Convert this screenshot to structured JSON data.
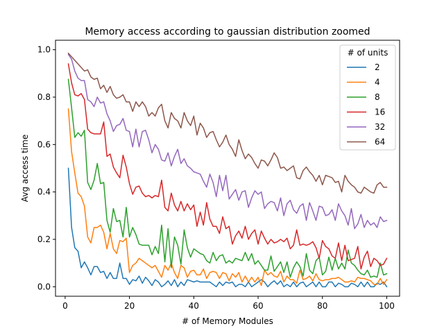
{
  "chart_data": {
    "type": "line",
    "title": "Memory access according to gaussian distribution zoomed",
    "xlabel": "# of Memory Modules",
    "ylabel": "Avg access time",
    "xlim": [
      -3,
      104
    ],
    "ylim": [
      -0.04,
      1.04
    ],
    "xticks": [
      0,
      20,
      40,
      60,
      80,
      100
    ],
    "yticks": [
      0.0,
      0.2,
      0.4,
      0.6,
      0.8,
      1.0
    ],
    "grid": false,
    "legend": {
      "title": "# of units",
      "placement": "top-right"
    },
    "x": [
      1,
      2,
      3,
      4,
      5,
      6,
      7,
      8,
      9,
      10,
      11,
      12,
      13,
      14,
      15,
      16,
      17,
      18,
      19,
      20,
      21,
      22,
      23,
      24,
      25,
      26,
      27,
      28,
      29,
      30,
      31,
      32,
      33,
      34,
      35,
      36,
      37,
      38,
      39,
      40,
      41,
      42,
      43,
      44,
      45,
      46,
      47,
      48,
      49,
      50,
      51,
      52,
      53,
      54,
      55,
      56,
      57,
      58,
      59,
      60,
      61,
      62,
      63,
      64,
      65,
      66,
      67,
      68,
      69,
      70,
      71,
      72,
      73,
      74,
      75,
      76,
      77,
      78,
      79,
      80,
      81,
      82,
      83,
      84,
      85,
      86,
      87,
      88,
      89,
      90,
      91,
      92,
      93,
      94,
      95,
      96,
      97,
      98,
      99,
      100
    ],
    "series": [
      {
        "name": "2",
        "color": "#1f77b4",
        "values": [
          0.5,
          0.25,
          0.165,
          0.15,
          0.08,
          0.105,
          0.08,
          0.05,
          0.085,
          0.085,
          0.06,
          0.065,
          0.035,
          0.06,
          0.035,
          0.035,
          0.1,
          0.035,
          0.035,
          0.01,
          0.03,
          0.025,
          0.045,
          0.015,
          0.04,
          0.025,
          0.005,
          0.03,
          0.02,
          0.0,
          0.01,
          0.025,
          0.005,
          0.03,
          0.0,
          0.02,
          0.005,
          0.03,
          0.025,
          0.02,
          0.025,
          0.02,
          0.02,
          0.02,
          0.02,
          0.01,
          0.0,
          0.02,
          0.005,
          0.02,
          0.015,
          0.02,
          0.0,
          0.01,
          0.01,
          0.0,
          0.02,
          0.0,
          0.01,
          0.02,
          0.03,
          0.02,
          0.0,
          0.015,
          0.025,
          0.01,
          0.025,
          0.0,
          0.01,
          0.0,
          0.02,
          0.0,
          0.015,
          0.02,
          0.0,
          0.01,
          0.02,
          0.0,
          0.02,
          0.0,
          0.0,
          0.02,
          0.02,
          0.0,
          0.015,
          0.01,
          0.0,
          0.0,
          0.015,
          0.01,
          0.0,
          0.02,
          0.0,
          0.02,
          0.0,
          0.0,
          0.015,
          0.01,
          0.02,
          0.0
        ]
      },
      {
        "name": "4",
        "color": "#ff7f0e",
        "values": [
          0.75,
          0.57,
          0.48,
          0.395,
          0.38,
          0.34,
          0.21,
          0.185,
          0.25,
          0.25,
          0.26,
          0.23,
          0.16,
          0.225,
          0.16,
          0.14,
          0.195,
          0.19,
          0.205,
          0.06,
          0.09,
          0.1,
          0.12,
          0.11,
          0.1,
          0.09,
          0.08,
          0.09,
          0.065,
          0.04,
          0.09,
          0.07,
          0.1,
          0.06,
          0.035,
          0.09,
          0.08,
          0.04,
          0.065,
          0.07,
          0.05,
          0.05,
          0.075,
          0.035,
          0.06,
          0.065,
          0.06,
          0.035,
          0.06,
          0.055,
          0.025,
          0.055,
          0.04,
          0.06,
          0.02,
          0.045,
          0.02,
          0.04,
          0.02,
          0.04,
          0.005,
          0.07,
          0.05,
          0.06,
          0.045,
          0.04,
          0.065,
          0.02,
          0.045,
          0.03,
          0.03,
          0.015,
          0.07,
          0.03,
          0.035,
          0.045,
          0.025,
          0.055,
          0.03,
          0.025,
          0.03,
          0.03,
          0.035,
          0.035,
          0.04,
          0.03,
          0.02,
          0.02,
          0.025,
          0.02,
          0.04,
          0.035,
          0.035,
          0.03,
          0.025,
          0.01,
          0.01,
          0.035,
          0.01,
          0.03
        ]
      },
      {
        "name": "8",
        "color": "#2ca02c",
        "values": [
          0.875,
          0.755,
          0.63,
          0.65,
          0.635,
          0.66,
          0.44,
          0.41,
          0.45,
          0.52,
          0.435,
          0.44,
          0.28,
          0.23,
          0.33,
          0.275,
          0.28,
          0.21,
          0.335,
          0.21,
          0.25,
          0.22,
          0.18,
          0.175,
          0.175,
          0.175,
          0.135,
          0.17,
          0.14,
          0.26,
          0.105,
          0.245,
          0.08,
          0.21,
          0.175,
          0.095,
          0.24,
          0.165,
          0.125,
          0.16,
          0.15,
          0.14,
          0.135,
          0.11,
          0.1,
          0.145,
          0.11,
          0.13,
          0.135,
          0.1,
          0.11,
          0.1,
          0.12,
          0.115,
          0.11,
          0.145,
          0.11,
          0.14,
          0.095,
          0.11,
          0.09,
          0.07,
          0.07,
          0.13,
          0.065,
          0.085,
          0.105,
          0.06,
          0.105,
          0.04,
          0.08,
          0.105,
          0.085,
          0.045,
          0.14,
          0.07,
          0.055,
          0.11,
          0.125,
          0.05,
          0.065,
          0.125,
          0.07,
          0.12,
          0.075,
          0.1,
          0.075,
          0.155,
          0.1,
          0.09,
          0.07,
          0.055,
          0.05,
          0.07,
          0.04,
          0.045,
          0.04,
          0.1,
          0.05,
          0.055
        ]
      },
      {
        "name": "16",
        "color": "#d62728",
        "values": [
          0.94,
          0.86,
          0.81,
          0.805,
          0.815,
          0.79,
          0.665,
          0.65,
          0.645,
          0.645,
          0.645,
          0.695,
          0.55,
          0.56,
          0.505,
          0.48,
          0.46,
          0.555,
          0.505,
          0.435,
          0.39,
          0.42,
          0.425,
          0.395,
          0.38,
          0.385,
          0.375,
          0.385,
          0.38,
          0.45,
          0.335,
          0.32,
          0.395,
          0.345,
          0.32,
          0.36,
          0.32,
          0.35,
          0.325,
          0.345,
          0.255,
          0.315,
          0.26,
          0.355,
          0.285,
          0.255,
          0.255,
          0.225,
          0.295,
          0.245,
          0.255,
          0.18,
          0.215,
          0.235,
          0.205,
          0.255,
          0.2,
          0.225,
          0.24,
          0.18,
          0.235,
          0.205,
          0.18,
          0.2,
          0.185,
          0.19,
          0.2,
          0.19,
          0.205,
          0.16,
          0.175,
          0.24,
          0.175,
          0.18,
          0.175,
          0.18,
          0.19,
          0.165,
          0.12,
          0.195,
          0.17,
          0.16,
          0.13,
          0.12,
          0.185,
          0.11,
          0.175,
          0.11,
          0.115,
          0.12,
          0.17,
          0.075,
          0.125,
          0.15,
          0.085,
          0.12,
          0.11,
          0.09,
          0.095,
          0.12
        ]
      },
      {
        "name": "32",
        "color": "#9467bd",
        "values": [
          0.98,
          0.96,
          0.91,
          0.88,
          0.87,
          0.87,
          0.79,
          0.78,
          0.76,
          0.8,
          0.775,
          0.78,
          0.73,
          0.7,
          0.655,
          0.68,
          0.685,
          0.71,
          0.66,
          0.655,
          0.59,
          0.665,
          0.59,
          0.655,
          0.66,
          0.62,
          0.565,
          0.6,
          0.58,
          0.535,
          0.53,
          0.565,
          0.51,
          0.55,
          0.58,
          0.52,
          0.54,
          0.51,
          0.5,
          0.485,
          0.48,
          0.475,
          0.445,
          0.42,
          0.475,
          0.44,
          0.38,
          0.47,
          0.405,
          0.47,
          0.37,
          0.39,
          0.41,
          0.365,
          0.4,
          0.405,
          0.335,
          0.375,
          0.405,
          0.39,
          0.4,
          0.33,
          0.35,
          0.36,
          0.355,
          0.32,
          0.375,
          0.3,
          0.35,
          0.365,
          0.325,
          0.31,
          0.34,
          0.35,
          0.28,
          0.355,
          0.32,
          0.28,
          0.34,
          0.335,
          0.3,
          0.305,
          0.325,
          0.28,
          0.35,
          0.32,
          0.3,
          0.26,
          0.33,
          0.245,
          0.265,
          0.305,
          0.25,
          0.28,
          0.26,
          0.27,
          0.25,
          0.295,
          0.275,
          0.28
        ]
      },
      {
        "name": "64",
        "color": "#8c564b",
        "values": [
          0.985,
          0.97,
          0.955,
          0.94,
          0.925,
          0.91,
          0.915,
          0.885,
          0.875,
          0.88,
          0.835,
          0.85,
          0.82,
          0.845,
          0.81,
          0.795,
          0.8,
          0.81,
          0.78,
          0.78,
          0.74,
          0.78,
          0.76,
          0.78,
          0.76,
          0.72,
          0.735,
          0.72,
          0.755,
          0.77,
          0.7,
          0.67,
          0.735,
          0.71,
          0.7,
          0.67,
          0.735,
          0.7,
          0.68,
          0.72,
          0.64,
          0.69,
          0.67,
          0.63,
          0.65,
          0.655,
          0.62,
          0.59,
          0.61,
          0.64,
          0.6,
          0.58,
          0.55,
          0.62,
          0.575,
          0.54,
          0.56,
          0.545,
          0.52,
          0.5,
          0.535,
          0.53,
          0.51,
          0.535,
          0.565,
          0.545,
          0.5,
          0.505,
          0.49,
          0.5,
          0.51,
          0.46,
          0.455,
          0.49,
          0.505,
          0.485,
          0.47,
          0.445,
          0.47,
          0.43,
          0.47,
          0.465,
          0.46,
          0.44,
          0.445,
          0.4,
          0.47,
          0.445,
          0.43,
          0.42,
          0.4,
          0.395,
          0.42,
          0.41,
          0.4,
          0.395,
          0.43,
          0.44,
          0.42,
          0.42
        ]
      }
    ]
  }
}
